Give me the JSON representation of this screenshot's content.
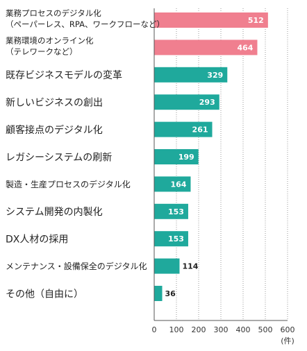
{
  "chart_data": {
    "type": "bar",
    "orientation": "horizontal",
    "categories": [
      [
        "業務プロセスのデジタル化",
        "（ペーパーレス、RPA、ワークフローなど）"
      ],
      [
        "業務環境のオンライン化",
        "（テレワークなど）"
      ],
      [
        "既存ビジネスモデルの変革"
      ],
      [
        "新しいビジネスの創出"
      ],
      [
        "顧客接点のデジタル化"
      ],
      [
        "レガシーシステムの刷新"
      ],
      [
        "製造・生産プロセスのデジタル化"
      ],
      [
        "システム開発の内製化"
      ],
      [
        "DX人材の採用"
      ],
      [
        "メンテナンス・設備保全のデジタル化"
      ],
      [
        "その他（自由に）"
      ]
    ],
    "values": [
      512,
      464,
      329,
      293,
      261,
      199,
      164,
      153,
      153,
      114,
      36
    ],
    "bar_colors": [
      "#f07f8f",
      "#f07f8f",
      "#1fa99c",
      "#1fa99c",
      "#1fa99c",
      "#1fa99c",
      "#1fa99c",
      "#1fa99c",
      "#1fa99c",
      "#1fa99c",
      "#1fa99c"
    ],
    "x_ticks": [
      0,
      100,
      200,
      300,
      400,
      500,
      600
    ],
    "xlim": [
      0,
      600
    ],
    "unit_label": "(件)",
    "grid": "vertical dotted",
    "title": "",
    "xlabel": "",
    "ylabel": ""
  }
}
